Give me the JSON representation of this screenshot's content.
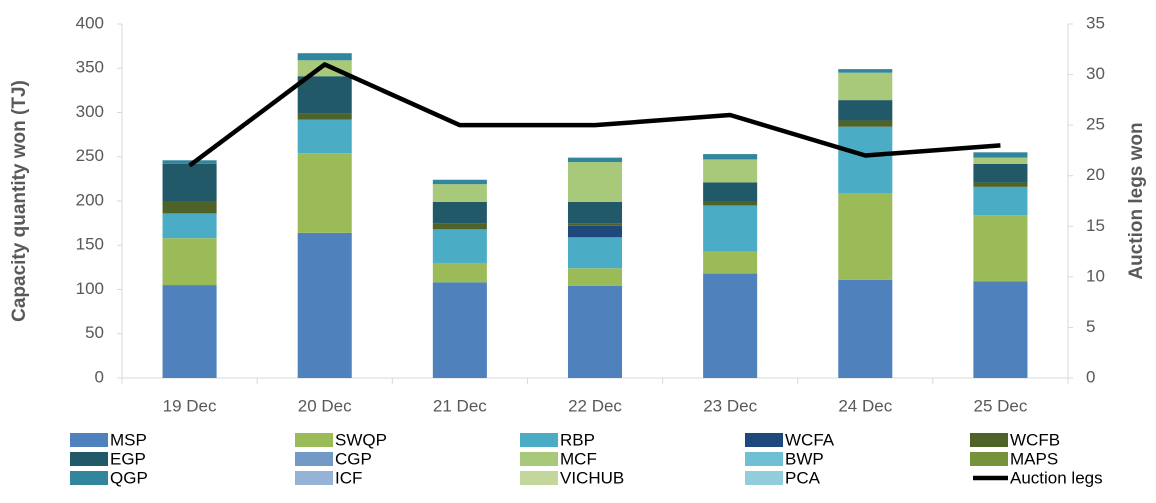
{
  "chart_data": {
    "type": "bar",
    "categories": [
      "19 Dec",
      "20 Dec",
      "21 Dec",
      "22 Dec",
      "23 Dec",
      "24 Dec",
      "25 Dec"
    ],
    "ylabel": "Capacity quantity won (TJ)",
    "y2label": "Auction legs won",
    "ylim": [
      0,
      400
    ],
    "yticks": [
      0,
      50,
      100,
      150,
      200,
      250,
      300,
      350,
      400
    ],
    "y2lim": [
      0,
      35
    ],
    "y2ticks": [
      0,
      5,
      10,
      15,
      20,
      25,
      30,
      35
    ],
    "stacked": true,
    "series": [
      {
        "name": "MSP",
        "color": "#4f81bd",
        "values": [
          105,
          164,
          108,
          104,
          118,
          111,
          109
        ]
      },
      {
        "name": "SWQP",
        "color": "#9bbb59",
        "values": [
          53,
          90,
          22,
          20,
          25,
          98,
          75
        ]
      },
      {
        "name": "RBP",
        "color": "#4bacc6",
        "values": [
          28,
          38,
          38,
          35,
          52,
          75,
          32
        ]
      },
      {
        "name": "WCFA",
        "color": "#1f497d",
        "values": [
          0,
          0,
          0,
          13,
          0,
          0,
          0
        ]
      },
      {
        "name": "WCFB",
        "color": "#4f6228",
        "values": [
          14,
          7,
          7,
          3,
          5,
          7,
          5
        ]
      },
      {
        "name": "EGP",
        "color": "#215968",
        "values": [
          42,
          42,
          24,
          24,
          21,
          23,
          21
        ]
      },
      {
        "name": "CGP",
        "color": "#7399c6",
        "values": [
          0,
          0,
          0,
          0,
          0,
          0,
          0
        ]
      },
      {
        "name": "MCF",
        "color": "#a9c97a",
        "values": [
          0,
          18,
          20,
          45,
          26,
          31,
          7
        ]
      },
      {
        "name": "BWP",
        "color": "#6fc0d4",
        "values": [
          0,
          0,
          0,
          0,
          0,
          0,
          0
        ]
      },
      {
        "name": "MAPS",
        "color": "#76923c",
        "values": [
          0,
          0,
          0,
          0,
          0,
          0,
          0
        ]
      },
      {
        "name": "QGP",
        "color": "#31859c",
        "values": [
          4,
          8,
          5,
          5,
          6,
          4,
          6
        ]
      },
      {
        "name": "ICF",
        "color": "#95b3d7",
        "values": [
          0,
          0,
          0,
          0,
          0,
          0,
          0
        ]
      },
      {
        "name": "VICHUB",
        "color": "#c3d69b",
        "values": [
          0,
          0,
          0,
          0,
          0,
          0,
          0
        ]
      },
      {
        "name": "PCA",
        "color": "#92cddc",
        "values": [
          0,
          0,
          0,
          0,
          0,
          0,
          0
        ]
      },
      {
        "name": "Auction legs",
        "color": "#000000",
        "type": "line",
        "axis": "y2",
        "values": [
          21,
          31,
          25,
          25,
          26,
          22,
          23
        ]
      }
    ]
  }
}
